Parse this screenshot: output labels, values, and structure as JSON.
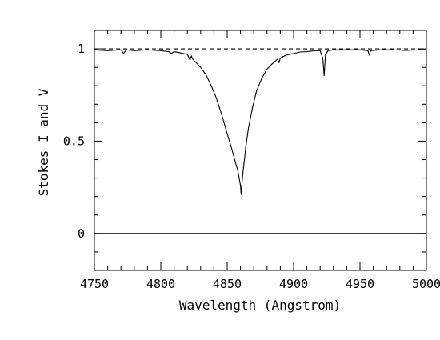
{
  "chart_data": {
    "type": "line",
    "title": "",
    "xlabel": "Wavelength (Angstrom)",
    "ylabel": "Stokes I and V",
    "xlim": [
      4750,
      5000
    ],
    "ylim": [
      -0.2,
      1.1
    ],
    "xticks": [
      4750,
      4800,
      4850,
      4900,
      4950,
      5000
    ],
    "xtick_labels": [
      "4750",
      "4800",
      "4850",
      "4900",
      "4950",
      "5000"
    ],
    "yticks": [
      0,
      0.5,
      1
    ],
    "ytick_labels": [
      "0",
      "0.5",
      "1"
    ],
    "grid": false,
    "legend": "none",
    "series": [
      {
        "style": "solid",
        "x": [
          4750,
          4760,
          4770,
          4772,
          4774,
          4780,
          4790,
          4800,
          4806,
          4808,
          4810,
          4815,
          4820,
          4822,
          4823,
          4824,
          4826,
          4830,
          4834,
          4838,
          4842,
          4846,
          4850,
          4853,
          4856,
          4858,
          4859,
          4860,
          4860.5,
          4861,
          4861.5,
          4862,
          4863,
          4864,
          4866,
          4869,
          4872,
          4876,
          4880,
          4884,
          4888,
          4889,
          4890,
          4894,
          4900,
          4905,
          4910,
          4916,
          4920,
          4922,
          4923,
          4924,
          4926,
          4930,
          4940,
          4950,
          4956,
          4957,
          4958,
          4965,
          4975,
          4985,
          4995,
          5000
        ],
        "values": [
          0.995,
          0.99,
          0.995,
          0.975,
          0.995,
          0.99,
          0.995,
          0.99,
          0.985,
          0.975,
          0.985,
          0.978,
          0.97,
          0.94,
          0.962,
          0.945,
          0.93,
          0.9,
          0.86,
          0.8,
          0.73,
          0.64,
          0.54,
          0.47,
          0.39,
          0.34,
          0.3,
          0.26,
          0.21,
          0.26,
          0.3,
          0.34,
          0.4,
          0.47,
          0.57,
          0.68,
          0.77,
          0.84,
          0.89,
          0.92,
          0.945,
          0.925,
          0.95,
          0.965,
          0.975,
          0.983,
          0.985,
          0.99,
          0.99,
          0.95,
          0.855,
          0.97,
          0.99,
          0.995,
          0.995,
          0.995,
          0.99,
          0.965,
          0.99,
          0.995,
          0.995,
          0.992,
          0.995,
          0.995
        ]
      },
      {
        "style": "dashed",
        "x": [
          4750,
          5000
        ],
        "values": [
          1,
          1
        ]
      },
      {
        "style": "solid",
        "x": [
          4750,
          5000
        ],
        "values": [
          0,
          0
        ]
      }
    ]
  }
}
